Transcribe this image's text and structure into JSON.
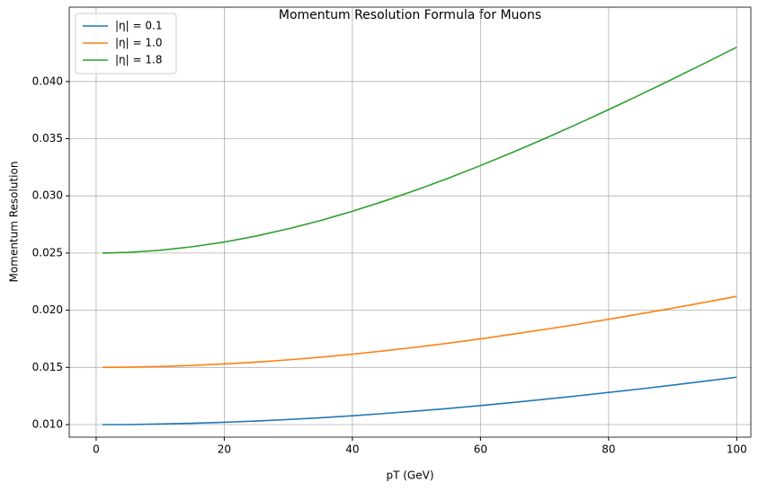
{
  "chart_data": {
    "type": "line",
    "title": "Momentum Resolution Formula for Muons",
    "x_label": "pT (GeV)",
    "y_label": "Momentum Resolution",
    "x": [
      1,
      5,
      10,
      15,
      20,
      25,
      30,
      35,
      40,
      45,
      50,
      55,
      60,
      65,
      70,
      75,
      80,
      85,
      90,
      95,
      100
    ],
    "series": [
      {
        "name": "|η| = 0.1",
        "color": "#1f77b4",
        "values": [
          0.01,
          0.01,
          0.01005,
          0.01011,
          0.0102,
          0.01031,
          0.01044,
          0.01059,
          0.01077,
          0.01097,
          0.01118,
          0.01141,
          0.01166,
          0.01193,
          0.01221,
          0.0125,
          0.01281,
          0.01312,
          0.01345,
          0.01379,
          0.01414
        ]
      },
      {
        "name": "|η| = 1.0",
        "color": "#ff7f0e",
        "values": [
          0.015,
          0.01502,
          0.01508,
          0.01517,
          0.0153,
          0.01546,
          0.01566,
          0.01589,
          0.01615,
          0.01645,
          0.01677,
          0.01712,
          0.01749,
          0.0179,
          0.01832,
          0.01875,
          0.01921,
          0.01969,
          0.02018,
          0.02069,
          0.02121
        ]
      },
      {
        "name": "|η| = 1.8",
        "color": "#2ca02c",
        "values": [
          0.025,
          0.02506,
          0.02524,
          0.02555,
          0.02596,
          0.02649,
          0.02712,
          0.02784,
          0.02865,
          0.02955,
          0.03052,
          0.03155,
          0.03265,
          0.0338,
          0.035,
          0.03625,
          0.03754,
          0.03886,
          0.04022,
          0.0416,
          0.043
        ]
      }
    ],
    "xlim": [
      -4.2,
      102.2
    ],
    "xticks": [
      0,
      20,
      40,
      60,
      80,
      100
    ],
    "ylim": [
      0.0089,
      0.0465
    ],
    "yticks": [
      {
        "value": 0.01,
        "label": "0.010"
      },
      {
        "value": 0.015,
        "label": "0.015"
      },
      {
        "value": 0.02,
        "label": "0.020"
      },
      {
        "value": 0.025,
        "label": "0.025"
      },
      {
        "value": 0.03,
        "label": "0.030"
      },
      {
        "value": 0.035,
        "label": "0.035"
      },
      {
        "value": 0.04,
        "label": "0.040"
      }
    ],
    "grid": true,
    "legend_position": "upper-left"
  }
}
